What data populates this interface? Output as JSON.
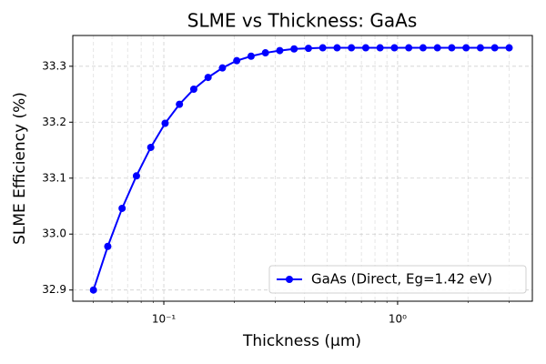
{
  "chart_data": {
    "type": "line",
    "title": "SLME vs Thickness: GaAs",
    "x_label": "Thickness (μm)",
    "y_label": "SLME Efficiency (%)",
    "x": [
      0.05,
      0.05758,
      0.06631,
      0.07636,
      0.08794,
      0.10127,
      0.11662,
      0.1343,
      0.15466,
      0.17811,
      0.20511,
      0.2362,
      0.27201,
      0.31325,
      0.36074,
      0.41543,
      0.47841,
      0.55094,
      0.63446,
      0.73065,
      0.84142,
      0.96898,
      1.11588,
      1.28505,
      1.47987,
      1.70422,
      1.96258,
      2.26011,
      2.60274,
      3.0
    ],
    "series": [
      {
        "name": "GaAs (Direct, Eg=1.42 eV)",
        "color": "#0000ff",
        "values": [
          32.9,
          32.978,
          33.046,
          33.104,
          33.155,
          33.198,
          33.232,
          33.259,
          33.28,
          33.297,
          33.31,
          33.318,
          33.324,
          33.328,
          33.331,
          33.332,
          33.333,
          33.333,
          33.333,
          33.333,
          33.333,
          33.333,
          33.333,
          33.333,
          33.333,
          33.333,
          33.333,
          33.333,
          33.333,
          33.333
        ]
      }
    ],
    "xscale": "log",
    "xlim": [
      0.0408,
      3.77
    ],
    "xticks": [
      {
        "value": 0.1,
        "label": "10⁻¹"
      },
      {
        "value": 1,
        "label": "10⁰"
      }
    ],
    "xminor_ticks": [
      0.05,
      0.06,
      0.07,
      0.08,
      0.09,
      0.2,
      0.3,
      0.4,
      0.5,
      0.6,
      0.7,
      0.8,
      0.9,
      2,
      3
    ],
    "ylim": [
      32.88,
      33.355
    ],
    "yticks": [
      32.9,
      {
        "value": 33,
        "label": "33.0"
      },
      33.1,
      33.2,
      33.3
    ],
    "grid": true,
    "legend": "lower right"
  }
}
